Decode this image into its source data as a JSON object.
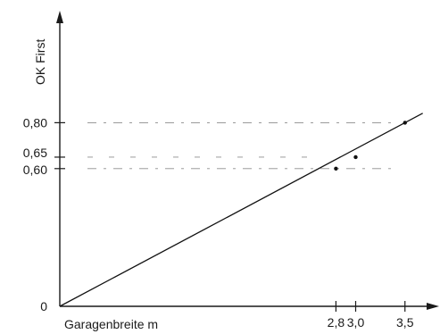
{
  "chart_data": {
    "type": "line",
    "title": "",
    "xlabel": "Garagenbreite m",
    "ylabel": "OK First",
    "xlim": [
      0,
      3.7
    ],
    "ylim": [
      0,
      0.97
    ],
    "grid": false,
    "series": [
      {
        "x": [
          0,
          2.8,
          3.0,
          3.5
        ],
        "y": [
          0,
          0.6,
          0.65,
          0.8
        ]
      }
    ],
    "marked_points": [
      {
        "x": 2.8,
        "y": 0.6
      },
      {
        "x": 3.0,
        "y": 0.65
      },
      {
        "x": 3.5,
        "y": 0.8
      }
    ],
    "guide_lines_y": [
      0.6,
      0.65,
      0.8
    ],
    "x_ticks": [
      {
        "value": 2.8,
        "label": "2,8"
      },
      {
        "value": 3.0,
        "label": "3,0"
      },
      {
        "value": 3.5,
        "label": "3,5"
      }
    ],
    "y_ticks": [
      {
        "value": 0,
        "label": "0"
      },
      {
        "value": 0.6,
        "label": "0,60"
      },
      {
        "value": 0.65,
        "label": "0,65"
      },
      {
        "value": 0.8,
        "label": "0,80"
      }
    ],
    "colors": {
      "line": "#111111",
      "guide": "#8c8c8c",
      "axis": "#1a1a1a"
    }
  }
}
